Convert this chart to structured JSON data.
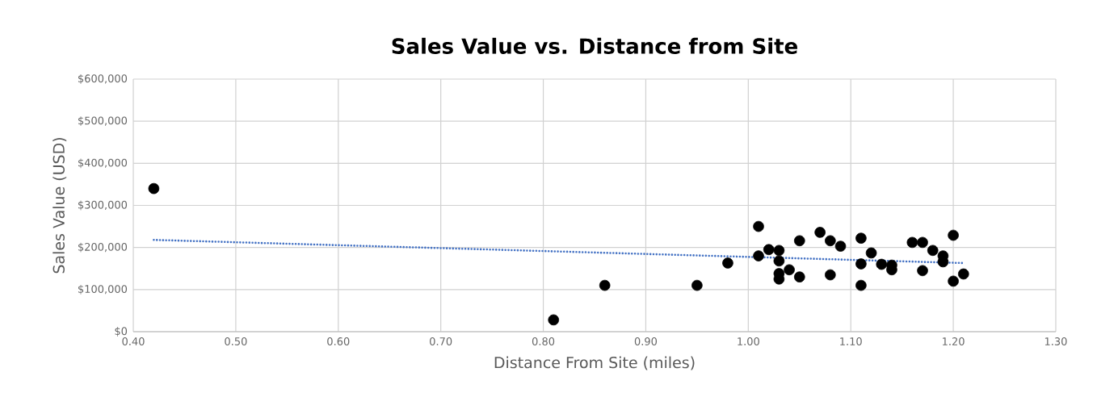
{
  "chart_data": {
    "type": "scatter",
    "title": "Sales Value vs. Distance from Site",
    "xlabel": "Distance From Site (miles)",
    "ylabel": "Sales Value (USD)",
    "series": [
      {
        "color": "#000000",
        "marker": "circle",
        "x": [
          0.42,
          0.81,
          0.86,
          0.95,
          0.98,
          1.01,
          1.01,
          1.02,
          1.03,
          1.03,
          1.03,
          1.03,
          1.04,
          1.05,
          1.05,
          1.07,
          1.08,
          1.08,
          1.09,
          1.11,
          1.11,
          1.11,
          1.12,
          1.13,
          1.14,
          1.14,
          1.16,
          1.17,
          1.17,
          1.18,
          1.19,
          1.19,
          1.2,
          1.2,
          1.21
        ],
        "values": [
          340000,
          28000,
          110000,
          110000,
          163000,
          250000,
          180000,
          195000,
          193000,
          168000,
          138000,
          125000,
          147000,
          216000,
          130000,
          236000,
          216000,
          135000,
          203000,
          222000,
          161000,
          110000,
          187000,
          160000,
          158000,
          147000,
          212000,
          212000,
          145000,
          193000,
          180000,
          166000,
          229000,
          120000,
          137000
        ]
      },
      {
        "type": "line",
        "color": "#4472c4",
        "line_style": "dotted",
        "marker": "none",
        "x": [
          0.42,
          1.21
        ],
        "values": [
          218000,
          163000
        ]
      }
    ],
    "xlim": [
      0.4,
      1.3
    ],
    "xticks": [
      {
        "value": 0.4,
        "label": "0.40"
      },
      {
        "value": 0.5,
        "label": "0.50"
      },
      {
        "value": 0.6,
        "label": "0.60"
      },
      {
        "value": 0.7,
        "label": "0.70"
      },
      {
        "value": 0.8,
        "label": "0.80"
      },
      {
        "value": 0.9,
        "label": "0.90"
      },
      {
        "value": 1.0,
        "label": "1.00"
      },
      {
        "value": 1.1,
        "label": "1.10"
      },
      {
        "value": 1.2,
        "label": "1.20"
      },
      {
        "value": 1.3,
        "label": "1.30"
      }
    ],
    "ylim": [
      0,
      600000
    ],
    "yticks": [
      {
        "value": 0,
        "label": "$0"
      },
      {
        "value": 100000,
        "label": "$100,000"
      },
      {
        "value": 200000,
        "label": "$200,000"
      },
      {
        "value": 300000,
        "label": "$300,000"
      },
      {
        "value": 400000,
        "label": "$400,000"
      },
      {
        "value": 500000,
        "label": "$500,000"
      },
      {
        "value": 600000,
        "label": "$600,000"
      }
    ],
    "grid": true,
    "legend": false
  }
}
